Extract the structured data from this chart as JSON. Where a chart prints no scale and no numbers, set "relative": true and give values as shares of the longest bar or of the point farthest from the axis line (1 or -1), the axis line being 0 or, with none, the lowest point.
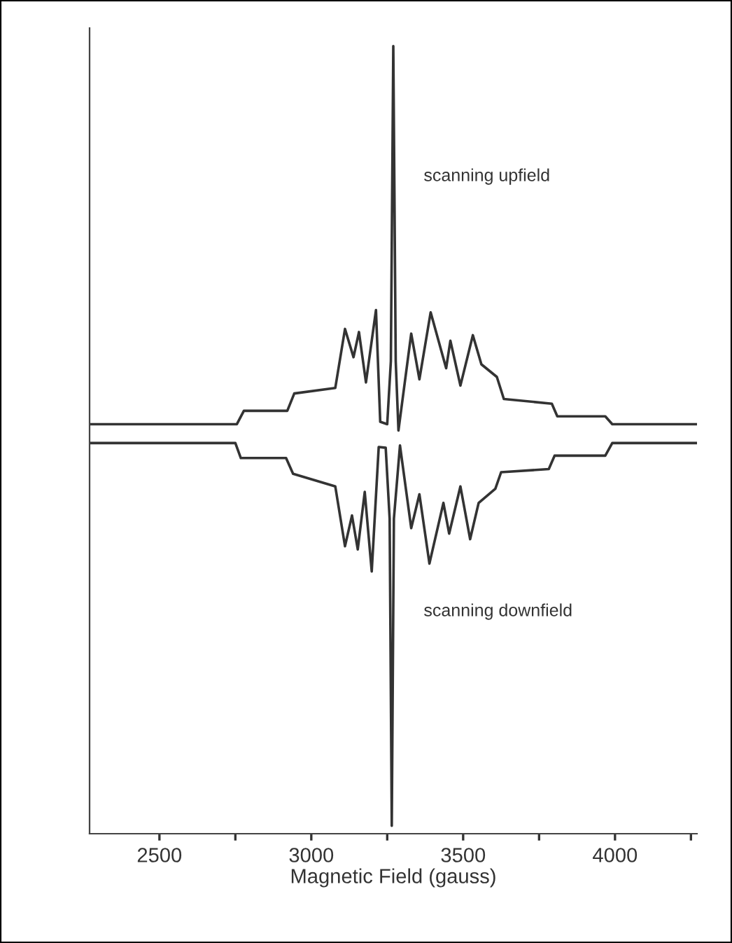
{
  "chart_data": {
    "type": "line",
    "relative": true,
    "xlabel": "Magnetic Field (gauss)",
    "xlim": [
      2270,
      4270
    ],
    "xticks": [
      2500,
      {
        "value": 2750,
        "label": null
      },
      3000,
      {
        "value": 3250,
        "label": null
      },
      3500,
      {
        "value": 3750,
        "label": null
      },
      4000,
      {
        "value": 4250,
        "label": null
      }
    ],
    "grid": false,
    "tick_labels": "x",
    "annotations": [
      "scanning upfield",
      "scanning downfield"
    ],
    "series": [
      {
        "color": "#333333",
        "x": [
          2270,
          2755,
          2778,
          2921,
          2944,
          3079,
          3111,
          3139,
          3157,
          3180,
          3213,
          3227,
          3250,
          3262,
          3270,
          3278,
          3287,
          3329,
          3356,
          3393,
          3444,
          3458,
          3491,
          3532,
          3560,
          3611,
          3634,
          3792,
          3810,
          3968,
          3991,
          4270
        ],
        "values": [
          0.52,
          0.52,
          0.537,
          0.537,
          0.559,
          0.566,
          0.641,
          0.605,
          0.637,
          0.573,
          0.665,
          0.523,
          0.52,
          0.6,
          1.0,
          0.6,
          0.512,
          0.635,
          0.577,
          0.662,
          0.591,
          0.626,
          0.569,
          0.633,
          0.596,
          0.58,
          0.552,
          0.546,
          0.53,
          0.53,
          0.52,
          0.52
        ]
      },
      {
        "color": "#333333",
        "x": [
          2270,
          2750,
          2768,
          2917,
          2940,
          3079,
          3111,
          3134,
          3153,
          3176,
          3199,
          3222,
          3245,
          3258,
          3265,
          3272,
          3292,
          3329,
          3356,
          3389,
          3435,
          3454,
          3491,
          3523,
          3551,
          3606,
          3625,
          3782,
          3801,
          3968,
          3991,
          4270
        ],
        "values": [
          0.496,
          0.496,
          0.477,
          0.477,
          0.457,
          0.441,
          0.365,
          0.404,
          0.361,
          0.434,
          0.333,
          0.491,
          0.49,
          0.4,
          0.01,
          0.4,
          0.493,
          0.388,
          0.431,
          0.343,
          0.42,
          0.381,
          0.441,
          0.374,
          0.42,
          0.438,
          0.459,
          0.463,
          0.48,
          0.48,
          0.496,
          0.496
        ]
      }
    ]
  }
}
